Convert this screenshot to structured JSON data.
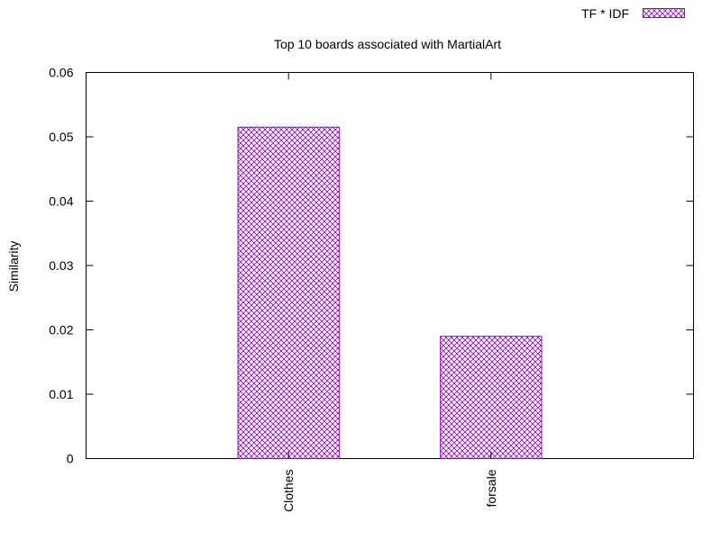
{
  "chart_data": {
    "type": "bar",
    "title": "Top 10 boards associated with MartialArt",
    "ylabel": "Similarity",
    "xlabel": "",
    "categories": [
      "Clothes",
      "forsale"
    ],
    "series": [
      {
        "name": "TF * IDF",
        "values": [
          0.0515,
          0.019
        ]
      }
    ],
    "ylim": [
      0,
      0.06
    ],
    "yticks": [
      0,
      0.01,
      0.02,
      0.03,
      0.04,
      0.05,
      0.06
    ],
    "ytick_labels": [
      "0",
      "0.01",
      "0.02",
      "0.03",
      "0.04",
      "0.05",
      "0.06"
    ],
    "grid": false,
    "legend_position": "top-right",
    "bar_fill_pattern": "crosshatch",
    "colors": {
      "bar": "#9400d3",
      "axis": "#000000"
    }
  }
}
